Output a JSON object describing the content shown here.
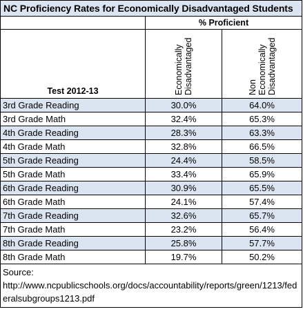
{
  "title": "NC Proficiency Rates for Economically Disadvantaged Students",
  "header": {
    "group_label": "% Proficient",
    "test_label": "Test 2012-13",
    "col1": [
      "Economically",
      "Disadvantaged"
    ],
    "col2": [
      "Non",
      "Economically",
      "Disadvantaged"
    ]
  },
  "rows": [
    {
      "test": "3rd Grade Reading",
      "ed": "30.0%",
      "ned": "64.0%"
    },
    {
      "test": "3rd Grade Math",
      "ed": "32.4%",
      "ned": "65.3%"
    },
    {
      "test": "4th Grade Reading",
      "ed": "28.3%",
      "ned": "63.3%"
    },
    {
      "test": "4th Grade Math",
      "ed": "32.8%",
      "ned": "66.5%"
    },
    {
      "test": "5th Grade Reading",
      "ed": "24.4%",
      "ned": "58.5%"
    },
    {
      "test": "5th Grade Math",
      "ed": "33.4%",
      "ned": "65.9%"
    },
    {
      "test": "6th Grade Reading",
      "ed": "30.9%",
      "ned": "65.5%"
    },
    {
      "test": "6th Grade Math",
      "ed": "24.1%",
      "ned": "57.4%"
    },
    {
      "test": "7th Grade Reading",
      "ed": "32.6%",
      "ned": "65.7%"
    },
    {
      "test": "7th Grade Math",
      "ed": "23.2%",
      "ned": "56.4%"
    },
    {
      "test": "8th Grade Reading",
      "ed": "25.8%",
      "ned": "57.7%"
    },
    {
      "test": "8th Grade Math",
      "ed": "19.7%",
      "ned": "50.2%"
    }
  ],
  "source": {
    "label": "Source:",
    "url": "http://www.ncpublicschools.org/docs/accountability/reports/green/1213/federalsubgroups1213.pdf"
  },
  "colors": {
    "shade": "#dbe5f1",
    "border": "#000000"
  }
}
